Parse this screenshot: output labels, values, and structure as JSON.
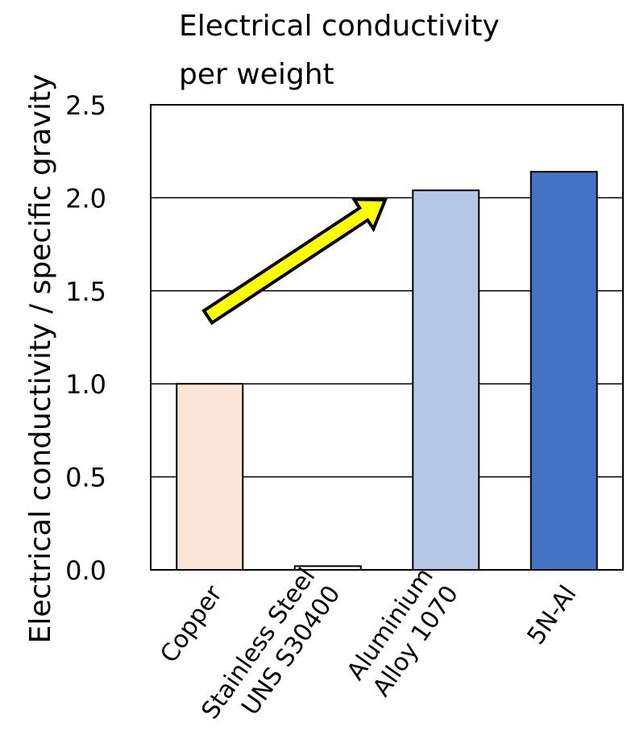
{
  "chart_data": {
    "type": "bar",
    "title_lines": [
      "Electrical conductivity",
      "per weight"
    ],
    "ylabel": "Electrical conductivity  / specific gravity",
    "xlabel": "",
    "categories": [
      [
        "Copper"
      ],
      [
        "Stainless Steel",
        "UNS S30400"
      ],
      [
        "Aluminium",
        "Alloy 1070"
      ],
      [
        "5N-Al"
      ]
    ],
    "values": [
      1.0,
      0.02,
      2.04,
      2.14
    ],
    "colors": [
      "#fbe5d6",
      "#ffffff",
      "#b4c7e7",
      "#4472c4"
    ],
    "ylim": [
      0,
      2.5
    ],
    "yticks": [
      "0.0",
      "0.5",
      "1.0",
      "1.5",
      "2.0",
      "2.5"
    ],
    "grid": true,
    "legend": "none",
    "annotation": {
      "type": "arrow",
      "color": "#ffff00",
      "from_category": "Copper",
      "to_category": "Aluminium Alloy 1070"
    }
  }
}
